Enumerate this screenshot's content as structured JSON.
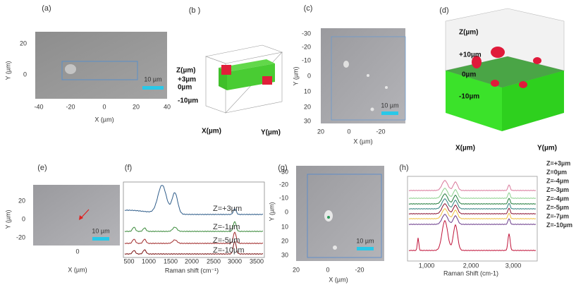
{
  "a": {
    "label": "(a)",
    "x_label": "X (µm)",
    "y_label": "Y (µm)",
    "x_ticks": [
      "-40",
      "-20",
      "0",
      "20",
      "40"
    ],
    "y_ticks": [
      "20",
      "0"
    ],
    "scale_bar": "10 µm"
  },
  "b": {
    "label": "(b )",
    "z_label": "Z(µm)",
    "z_ticks": [
      "+3µm",
      "0µm",
      "-10µm"
    ],
    "x_label": "X(µm)",
    "y_label": "Y(µm)"
  },
  "c": {
    "label": "(c)",
    "x_label": "X (µm)",
    "y_label": "Y (µm)",
    "x_ticks": [
      "20",
      "0",
      "-20"
    ],
    "y_ticks": [
      "-30",
      "-20",
      "-10",
      "0",
      "10",
      "20",
      "30"
    ],
    "scale_bar": "10 µm"
  },
  "d": {
    "label": "(d)",
    "z_label": "Z(µm)",
    "z_ticks": [
      "+10µm",
      "0µm",
      "-10µm"
    ],
    "x_label": "X(µm)",
    "y_label": "Y(µm)"
  },
  "e": {
    "label": "(e)",
    "x_label": "X (µm)",
    "y_label": "Y (µm)",
    "x_ticks": [
      "0"
    ],
    "y_ticks": [
      "20",
      "0",
      "-20"
    ],
    "scale_bar": "10 µm"
  },
  "f": {
    "label": "(f)",
    "x_label": "Raman shift (cm⁻¹)",
    "x_ticks": [
      "500",
      "1000",
      "1500",
      "2000",
      "2500",
      "3000",
      "3500"
    ],
    "traces": [
      "Z=+3µm",
      "Z=-1µm",
      "Z=-5µm",
      "Z=-10µm"
    ]
  },
  "g": {
    "label": "(g)",
    "x_label": "X (µm)",
    "y_label": "Y (µm)",
    "x_ticks": [
      "20",
      "0",
      "-20"
    ],
    "y_ticks": [
      "-30",
      "-20",
      "-10",
      "0",
      "10",
      "20",
      "30"
    ],
    "scale_bar": "10 µm"
  },
  "h": {
    "label": "(h)",
    "x_label": "Raman Shift (cm-1)",
    "x_ticks": [
      "1,000",
      "2,000",
      "3,000"
    ],
    "legend": [
      "Z=+3µm",
      "Z=0µm",
      "Z=-4µm",
      "Z=-3µm",
      "Z=-4µm",
      "Z=-5µm",
      "Z=-7µm",
      "Z=-10µm"
    ]
  }
}
